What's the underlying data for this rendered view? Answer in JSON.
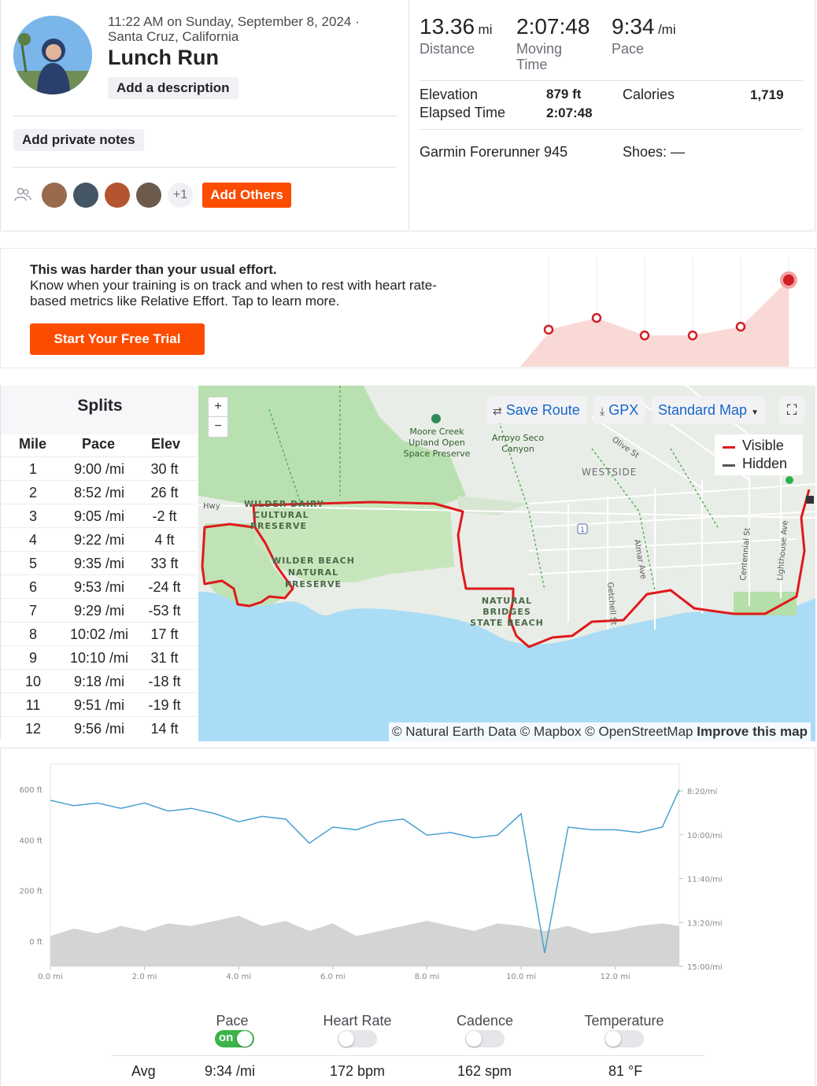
{
  "activity": {
    "datetime": "11:22 AM on Sunday, September 8, 2024 ·",
    "location": "Santa Cruz, California",
    "title": "Lunch Run",
    "add_description": "Add a description",
    "add_private_notes": "Add private notes",
    "kudos_more": "+1",
    "add_others": "Add Others"
  },
  "stats": {
    "distance": {
      "value": "13.36",
      "unit": "mi",
      "label": "Distance"
    },
    "moving_time": {
      "value": "2:07:48",
      "label": "Moving Time"
    },
    "pace": {
      "value": "9:34",
      "unit": "/mi",
      "label": "Pace"
    },
    "elevation_label": "Elevation",
    "elevation_value": "879 ft",
    "elapsed_label": "Elapsed Time",
    "elapsed_value": "2:07:48",
    "calories_label": "Calories",
    "calories_value": "1,719",
    "device": "Garmin Forerunner 945",
    "shoes": "Shoes: —"
  },
  "effort": {
    "heading": "This was harder than your usual effort.",
    "text": "Know when your training is on track and when to rest with heart rate-based metrics like Relative Effort. Tap to learn more.",
    "button": "Start Your Free Trial",
    "weekly_points": [
      0.22,
      0.34,
      0.16,
      0.16,
      0.25,
      0.73
    ]
  },
  "splits": {
    "title": "Splits",
    "headers": [
      "Mile",
      "Pace",
      "Elev"
    ],
    "rows": [
      {
        "mile": "1",
        "pace": "9:00 /mi",
        "elev": "30 ft"
      },
      {
        "mile": "2",
        "pace": "8:52 /mi",
        "elev": "26 ft"
      },
      {
        "mile": "3",
        "pace": "9:05 /mi",
        "elev": "-2 ft"
      },
      {
        "mile": "4",
        "pace": "9:22 /mi",
        "elev": "4 ft"
      },
      {
        "mile": "5",
        "pace": "9:35 /mi",
        "elev": "33 ft"
      },
      {
        "mile": "6",
        "pace": "9:53 /mi",
        "elev": "-24 ft"
      },
      {
        "mile": "7",
        "pace": "9:29 /mi",
        "elev": "-53 ft"
      },
      {
        "mile": "8",
        "pace": "10:02 /mi",
        "elev": "17 ft"
      },
      {
        "mile": "9",
        "pace": "10:10 /mi",
        "elev": "31 ft"
      },
      {
        "mile": "10",
        "pace": "9:18 /mi",
        "elev": "-18 ft"
      },
      {
        "mile": "11",
        "pace": "9:51 /mi",
        "elev": "-19 ft"
      },
      {
        "mile": "12",
        "pace": "9:56 /mi",
        "elev": "14 ft"
      }
    ]
  },
  "map": {
    "save_route": "Save Route",
    "gpx": "GPX",
    "map_style": "Standard Map",
    "legend_visible": "Visible",
    "legend_hidden": "Hidden",
    "zoom_in": "+",
    "zoom_out": "−",
    "attribution": "© Natural Earth Data © Mapbox © OpenStreetMap",
    "improve": "Improve this map",
    "labels": {
      "moore_creek": [
        "Moore Creek",
        "Upland Open",
        "Space Preserve"
      ],
      "arroyo_seco": [
        "Arroyo Seco",
        "Canyon"
      ],
      "westside": "WESTSIDE",
      "olive_st": "Olive St",
      "wilder_dairy": [
        "WILDER DAIRY",
        "CULTURAL",
        "PRESERVE"
      ],
      "wilder_beach": [
        "WILDER BEACH",
        "NATURAL",
        "PRESERVE"
      ],
      "natural_bridges": [
        "NATURAL",
        "BRIDGES",
        "STATE BEACH"
      ],
      "almar": "Almar Ave",
      "getchell": "Getchell St",
      "centennial": "Centennial St",
      "lighthouse": "Lighthouse Ave",
      "hwy": "Hwy",
      "route_1": "1"
    }
  },
  "chart_data": {
    "type": "area",
    "x_ticks": [
      "0.0 mi",
      "2.0 mi",
      "4.0 mi",
      "6.0 mi",
      "8.0 mi",
      "10.0 mi",
      "12.0 mi"
    ],
    "x_range": [
      0,
      13.36
    ],
    "y_left_ticks": [
      "600 ft",
      "400 ft",
      "200 ft",
      "0 ft"
    ],
    "y_left_range": [
      -100,
      700
    ],
    "y_right_ticks": [
      "8:20/mi",
      "10:00/mi",
      "11:40/mi",
      "13:20/mi",
      "15:00/mi"
    ],
    "series": [
      {
        "name": "Pace",
        "color": "#49a0d0",
        "x": [
          0,
          0.5,
          1,
          1.5,
          2,
          2.5,
          3,
          3.5,
          4,
          4.5,
          5,
          5.5,
          6,
          6.5,
          7,
          7.5,
          8,
          8.5,
          9,
          9.5,
          10,
          10.5,
          11,
          11.5,
          12,
          12.5,
          13,
          13.36
        ],
        "pace_min_per_mi": [
          8.8,
          9.0,
          8.9,
          9.1,
          8.9,
          9.2,
          9.1,
          9.3,
          9.6,
          9.4,
          9.5,
          10.4,
          9.8,
          9.9,
          9.6,
          9.5,
          10.1,
          10.0,
          10.2,
          10.1,
          9.3,
          14.5,
          9.8,
          9.9,
          9.9,
          10.0,
          9.8,
          8.4
        ]
      },
      {
        "name": "Elevation",
        "color": "#d0d0d0",
        "x": [
          0,
          0.5,
          1,
          1.5,
          2,
          2.5,
          3,
          3.5,
          4,
          4.5,
          5,
          5.5,
          6,
          6.5,
          7,
          7.5,
          8,
          8.5,
          9,
          9.5,
          10,
          10.5,
          11,
          11.5,
          12,
          12.5,
          13,
          13.36
        ],
        "elevation_ft": [
          20,
          50,
          30,
          60,
          40,
          70,
          60,
          80,
          100,
          60,
          80,
          40,
          70,
          20,
          40,
          60,
          80,
          60,
          40,
          70,
          60,
          40,
          60,
          30,
          40,
          60,
          70,
          60
        ]
      }
    ]
  },
  "streams": {
    "pace": {
      "label": "Pace",
      "toggle": "on",
      "avg": "9:34 /mi"
    },
    "heart_rate": {
      "label": "Heart Rate",
      "avg": "172 bpm"
    },
    "cadence": {
      "label": "Cadence",
      "avg": "162 spm"
    },
    "temperature": {
      "label": "Temperature",
      "avg": "81 °F"
    },
    "avg_label": "Avg"
  }
}
